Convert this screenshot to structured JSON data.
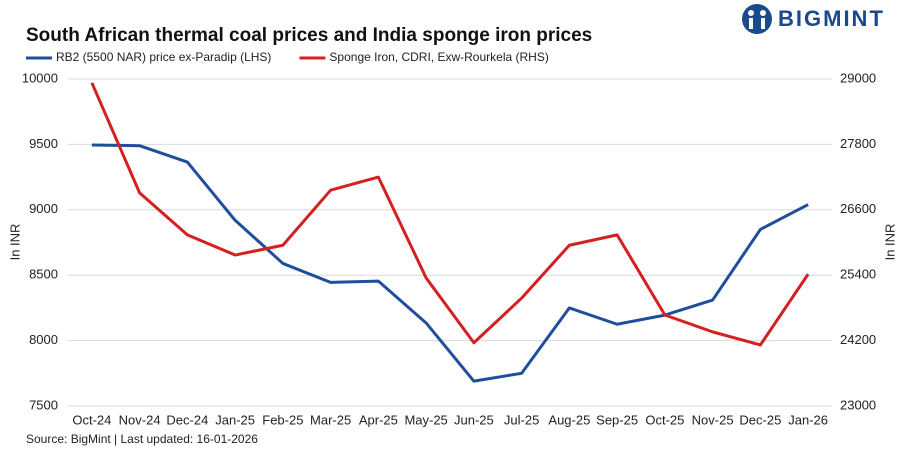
{
  "chart_data": {
    "type": "line",
    "title": "South African thermal coal prices and India sponge iron prices",
    "brand": "BIGMINT",
    "source": "Source: BigMint | Last updated: 16-01-2026",
    "ylabel": "In INR",
    "y2label": "In INR",
    "categories": [
      "Oct-24",
      "Nov-24",
      "Dec-24",
      "Jan-25",
      "Feb-25",
      "Mar-25",
      "Apr-25",
      "May-25",
      "Jun-25",
      "Jul-25",
      "Aug-25",
      "Sep-25",
      "Oct-25",
      "Nov-25",
      "Dec-25",
      "Jan-26"
    ],
    "series": [
      {
        "name": "RB2 (5500 NAR) price ex-Paradip (LHS)",
        "color": "#1f4e9c",
        "values": [
          9495,
          9490,
          9365,
          8920,
          8590,
          8445,
          8455,
          8135,
          7690,
          7750,
          8250,
          8125,
          8195,
          8310,
          8850,
          9040
        ]
      },
      {
        "name": "Sponge Iron, CDRI, Exw-Rourkela (RHS)",
        "color": "#d42020",
        "axis": "y2",
        "values": [
          28930,
          26910,
          26140,
          25770,
          25950,
          26960,
          27200,
          25350,
          24160,
          24980,
          25950,
          26140,
          24670,
          24360,
          24120,
          25420
        ]
      }
    ],
    "ylim": [
      7500,
      10000
    ],
    "yticks": [
      7500,
      8000,
      8500,
      9000,
      9500,
      10000
    ],
    "y2lim": [
      23000,
      29000
    ],
    "y2ticks": [
      23000,
      24200,
      25400,
      26600,
      27800,
      29000
    ],
    "grid": true
  }
}
